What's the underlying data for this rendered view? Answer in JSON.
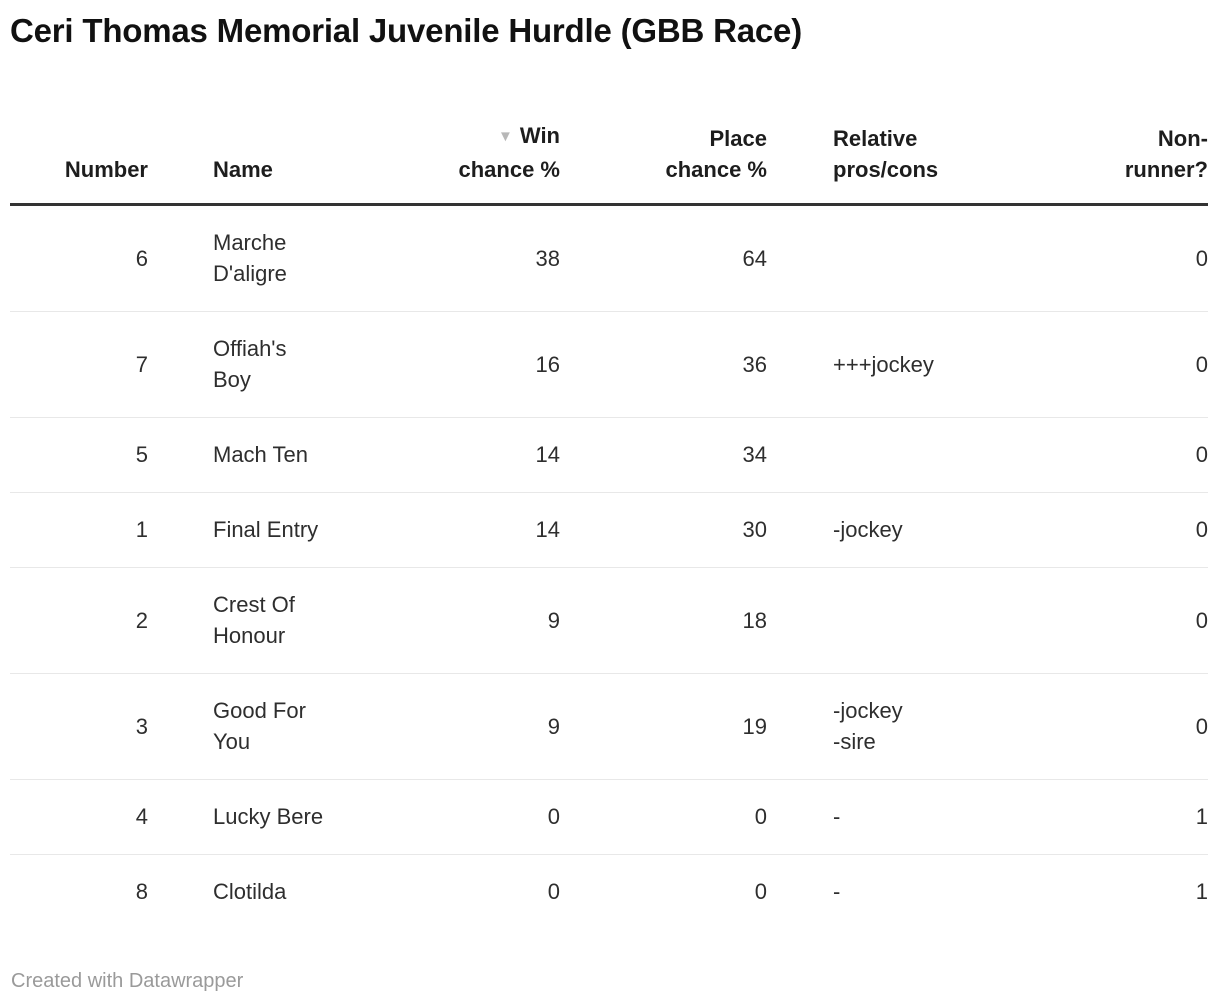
{
  "chart_data": {
    "type": "table",
    "title": "Ceri Thomas Memorial Juvenile Hurdle (GBB Race)",
    "sort": {
      "column": "Win chance %",
      "direction": "desc",
      "indicator": "▼"
    },
    "columns": [
      {
        "key": "number",
        "label": "Number",
        "align": "right",
        "sorted": false
      },
      {
        "key": "name",
        "label": "Name",
        "align": "left",
        "sorted": false
      },
      {
        "key": "win",
        "label": "Win\nchance %",
        "align": "right",
        "sorted": true
      },
      {
        "key": "place",
        "label": "Place\nchance %",
        "align": "right",
        "sorted": false
      },
      {
        "key": "pros",
        "label": "Relative\npros/cons",
        "align": "left",
        "sorted": false
      },
      {
        "key": "nonrunner",
        "label": "Non-\nrunner?",
        "align": "right",
        "sorted": false
      }
    ],
    "rows": [
      {
        "number": "6",
        "name": "Marche\nD'aligre",
        "win": "38",
        "place": "64",
        "pros": "",
        "nonrunner": "0"
      },
      {
        "number": "7",
        "name": "Offiah's\nBoy",
        "win": "16",
        "place": "36",
        "pros": "+++jockey",
        "nonrunner": "0"
      },
      {
        "number": "5",
        "name": "Mach Ten",
        "win": "14",
        "place": "34",
        "pros": "",
        "nonrunner": "0"
      },
      {
        "number": "1",
        "name": "Final Entry",
        "win": "14",
        "place": "30",
        "pros": "-jockey",
        "nonrunner": "0"
      },
      {
        "number": "2",
        "name": "Crest Of\nHonour",
        "win": "9",
        "place": "18",
        "pros": "",
        "nonrunner": "0"
      },
      {
        "number": "3",
        "name": "Good For\nYou",
        "win": "9",
        "place": "19",
        "pros": "-jockey\n-sire",
        "nonrunner": "0"
      },
      {
        "number": "4",
        "name": "Lucky Bere",
        "win": "0",
        "place": "0",
        "pros": "-",
        "nonrunner": "1"
      },
      {
        "number": "8",
        "name": "Clotilda",
        "win": "0",
        "place": "0",
        "pros": "-",
        "nonrunner": "1"
      }
    ]
  },
  "footer": {
    "credit": "Created with Datawrapper"
  },
  "colors": {
    "header_border": "#333333",
    "row_separator": "#e8e8e8",
    "title_text": "#111111",
    "body_text": "#2e2e2e",
    "sort_icon": "#b8b8b8",
    "footer_text": "#9a9a9a",
    "background": "#ffffff"
  }
}
